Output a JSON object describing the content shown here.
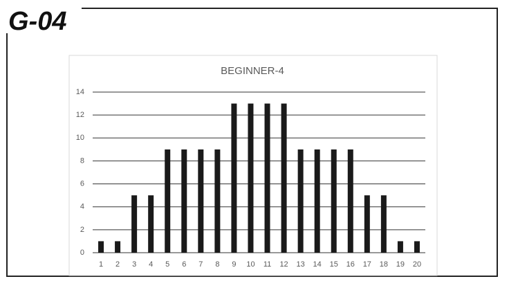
{
  "label": "G-04",
  "chart_data": {
    "type": "bar",
    "title": "BEGINNER-4",
    "categories": [
      "1",
      "2",
      "3",
      "4",
      "5",
      "6",
      "7",
      "8",
      "9",
      "10",
      "11",
      "12",
      "13",
      "14",
      "15",
      "16",
      "17",
      "18",
      "19",
      "20"
    ],
    "values": [
      1,
      1,
      5,
      5,
      9,
      9,
      9,
      9,
      13,
      13,
      13,
      13,
      9,
      9,
      9,
      9,
      5,
      5,
      1,
      1
    ],
    "color": "#1a1a1a",
    "ylim": [
      0,
      14
    ],
    "yticks": [
      0,
      2,
      4,
      6,
      8,
      10,
      12,
      14
    ],
    "grid": true
  }
}
